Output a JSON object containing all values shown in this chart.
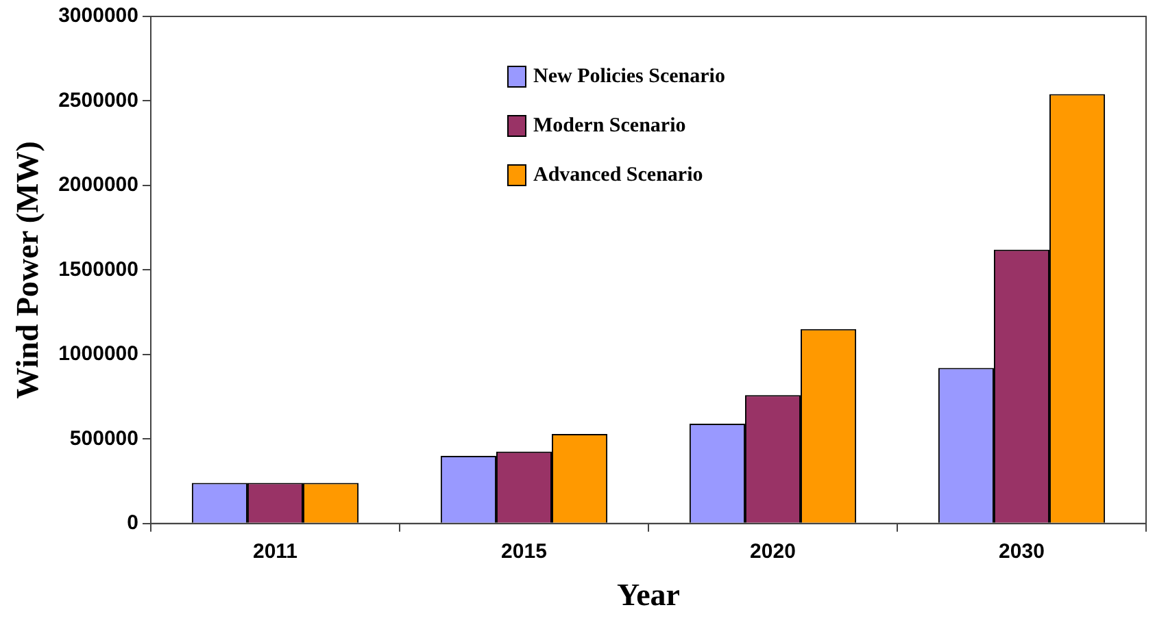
{
  "chart_data": {
    "type": "bar",
    "xlabel": "Year",
    "ylabel": "Wind Power (MW)",
    "categories": [
      "2011",
      "2015",
      "2020",
      "2030"
    ],
    "series": [
      {
        "name": "New Policies Scenario",
        "color": "#9999ff",
        "values": [
          240000,
          400000,
          590000,
          920000
        ]
      },
      {
        "name": "Modern Scenario",
        "color": "#993366",
        "values": [
          240000,
          425000,
          760000,
          1620000
        ]
      },
      {
        "name": "Advanced Scenario",
        "color": "#ff9900",
        "values": [
          240000,
          530000,
          1150000,
          2540000
        ]
      }
    ],
    "ylim": [
      0,
      3000000
    ],
    "yticks": [
      0,
      500000,
      1000000,
      1500000,
      2000000,
      2500000,
      3000000
    ],
    "grid": false,
    "legend": "top right"
  }
}
